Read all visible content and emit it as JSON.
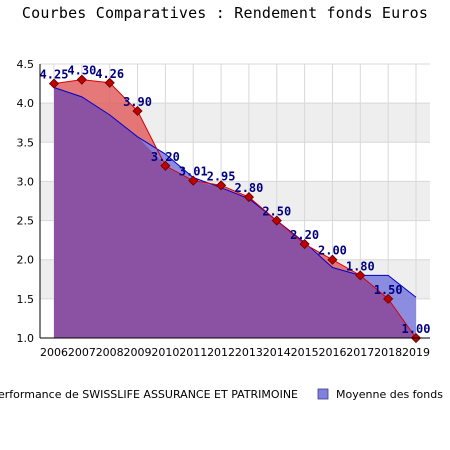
{
  "colors": {
    "series_1_fill": "#e06060",
    "series_1_line": "#dd0000",
    "series_2_fill": "#8080dd",
    "series_2_line": "#0000cc",
    "overlap_fill": "#8b52a3",
    "marker": "#c00000",
    "band": "#eeeeee",
    "grid": "#d8d8d8",
    "data_label": "#000080"
  },
  "chart_data": {
    "type": "area",
    "title": "Courbes Comparatives : Rendement fonds Euros",
    "xlabel": "",
    "ylabel": "",
    "categories": [
      "2006",
      "2007",
      "2008",
      "2009",
      "2010",
      "2011",
      "2012",
      "2013",
      "2014",
      "2015",
      "2016",
      "2017",
      "2018",
      "2019"
    ],
    "ylim": [
      1.0,
      4.5
    ],
    "yticks": [
      "1.0",
      "1.5",
      "2.0",
      "2.5",
      "3.0",
      "3.5",
      "4.0",
      "4.5"
    ],
    "grid": true,
    "legend_position": "bottom",
    "series": [
      {
        "name": "Performance de SWISSLIFE ASSURANCE ET PATRIMOINE",
        "values": [
          4.25,
          4.3,
          4.26,
          3.9,
          3.2,
          3.01,
          2.95,
          2.8,
          2.5,
          2.2,
          2.0,
          1.8,
          1.5,
          1.0
        ],
        "labels": [
          "4.25",
          "4.30",
          "4.26",
          "3.90",
          "3.20",
          "3.01",
          "2.95",
          "2.80",
          "2.50",
          "2.20",
          "2.00",
          "1.80",
          "1.50",
          "1.00"
        ]
      },
      {
        "name": "Moyenne des fonds",
        "values": [
          4.2,
          4.08,
          3.85,
          3.57,
          3.35,
          3.05,
          2.92,
          2.78,
          2.5,
          2.22,
          1.9,
          1.8,
          1.8,
          1.52
        ]
      }
    ]
  }
}
